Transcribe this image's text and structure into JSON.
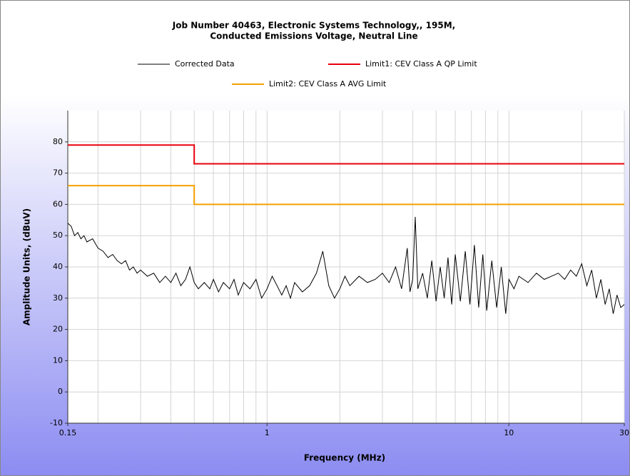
{
  "chart_data": {
    "type": "line",
    "title": [
      "Job Number 40463, Electronic Systems Technology,, 195M,",
      "Conducted Emissions Voltage, Neutral Line"
    ],
    "x_label": "Frequency (MHz)",
    "y_label": "Amplitude Units, (dBuV)",
    "log_x": true,
    "xlim": [
      0.15,
      30
    ],
    "xticks": [
      0.15,
      1,
      10,
      30
    ],
    "xminor": [
      0.2,
      0.3,
      0.4,
      0.5,
      0.6,
      0.7,
      0.8,
      0.9,
      2,
      3,
      4,
      5,
      6,
      7,
      8,
      9,
      20
    ],
    "ylim": [
      -10,
      90
    ],
    "yticks": [
      -10,
      0,
      10,
      20,
      30,
      40,
      50,
      60,
      70,
      80
    ],
    "grid": true,
    "series": [
      {
        "name": "Corrected Data",
        "color": "#000000",
        "x": [
          0.15,
          0.155,
          0.16,
          0.165,
          0.17,
          0.175,
          0.18,
          0.19,
          0.2,
          0.21,
          0.22,
          0.23,
          0.24,
          0.25,
          0.26,
          0.27,
          0.28,
          0.29,
          0.3,
          0.32,
          0.34,
          0.36,
          0.38,
          0.4,
          0.42,
          0.44,
          0.46,
          0.48,
          0.5,
          0.52,
          0.55,
          0.58,
          0.6,
          0.63,
          0.66,
          0.7,
          0.73,
          0.76,
          0.8,
          0.85,
          0.9,
          0.95,
          1.0,
          1.05,
          1.1,
          1.15,
          1.2,
          1.25,
          1.3,
          1.4,
          1.5,
          1.6,
          1.7,
          1.8,
          1.9,
          2.0,
          2.1,
          2.2,
          2.4,
          2.6,
          2.8,
          3.0,
          3.2,
          3.4,
          3.6,
          3.8,
          3.9,
          4.0,
          4.1,
          4.2,
          4.4,
          4.6,
          4.8,
          5.0,
          5.2,
          5.4,
          5.6,
          5.8,
          6.0,
          6.3,
          6.6,
          6.9,
          7.2,
          7.5,
          7.8,
          8.1,
          8.5,
          8.9,
          9.3,
          9.7,
          10,
          10.5,
          11,
          12,
          13,
          14,
          15,
          16,
          17,
          18,
          19,
          20,
          21,
          22,
          23,
          24,
          25,
          26,
          27,
          28,
          29,
          30
        ],
        "values": [
          54,
          53,
          50,
          51,
          49,
          50,
          48,
          49,
          46,
          45,
          43,
          44,
          42,
          41,
          42,
          39,
          40,
          38,
          39,
          37,
          38,
          35,
          37,
          35,
          38,
          34,
          36,
          40,
          35,
          33,
          35,
          33,
          36,
          32,
          35,
          33,
          36,
          31,
          35,
          33,
          36,
          30,
          33,
          37,
          34,
          31,
          34,
          30,
          35,
          32,
          34,
          38,
          45,
          34,
          30,
          33,
          37,
          34,
          37,
          35,
          36,
          38,
          35,
          40,
          33,
          46,
          32,
          36,
          56,
          33,
          38,
          30,
          42,
          29,
          40,
          30,
          43,
          28,
          44,
          29,
          45,
          28,
          47,
          27,
          44,
          26,
          42,
          27,
          40,
          25,
          36,
          33,
          37,
          35,
          38,
          36,
          37,
          38,
          36,
          39,
          37,
          41,
          34,
          39,
          30,
          36,
          28,
          33,
          25,
          31,
          27,
          28
        ]
      },
      {
        "name": "Limit1: CEV Class A QP Limit",
        "color": "#e8000b",
        "x": [
          0.15,
          0.5,
          0.5,
          30
        ],
        "values": [
          79,
          79,
          73,
          73
        ]
      },
      {
        "name": "Limit2: CEV Class A AVG Limit",
        "color": "#f5a000",
        "x": [
          0.15,
          0.5,
          0.5,
          30
        ],
        "values": [
          66,
          66,
          60,
          60
        ]
      }
    ]
  }
}
